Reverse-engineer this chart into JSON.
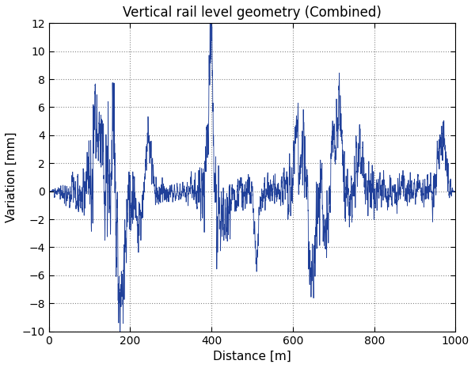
{
  "title": "Vertical rail level geometry (Combined)",
  "xlabel": "Distance [m]",
  "ylabel": "Variation [mm]",
  "xlim": [
    0,
    1000
  ],
  "ylim": [
    -10,
    12
  ],
  "yticks": [
    -10,
    -8,
    -6,
    -4,
    -2,
    0,
    2,
    4,
    6,
    8,
    10,
    12
  ],
  "xticks": [
    0,
    200,
    400,
    600,
    800,
    1000
  ],
  "line_color": "#1f3f99",
  "bg_color": "#ffffff",
  "grid_color": "#555555",
  "title_fontsize": 12,
  "label_fontsize": 11,
  "seed": 7,
  "n_points": 10000,
  "x_max": 1000.0
}
